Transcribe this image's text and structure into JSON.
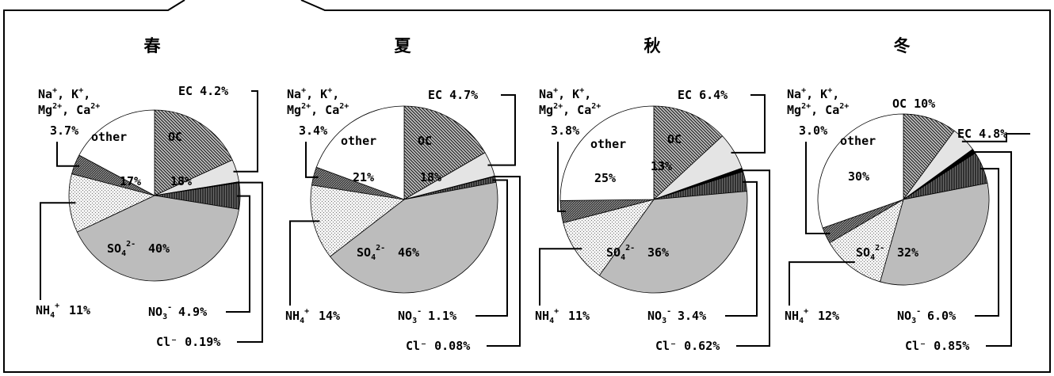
{
  "chart_data": [
    {
      "type": "pie",
      "title": "春",
      "slices": [
        {
          "name": "OC",
          "value": 18,
          "label": "18%",
          "pattern": "diag"
        },
        {
          "name": "EC",
          "value": 4.2,
          "label": "EC 4.2%",
          "pattern": "light"
        },
        {
          "name": "Cl⁻",
          "value": 0.19,
          "label": "Cl⁻ 0.19%",
          "pattern": "black"
        },
        {
          "name": "NO₃⁻",
          "value": 4.9,
          "label": "NO₃⁻ 4.9%",
          "pattern": "vert"
        },
        {
          "name": "SO₄²⁻",
          "value": 40,
          "label": "40%",
          "pattern": "gray"
        },
        {
          "name": "NH₄⁺",
          "value": 11,
          "label": "NH₄⁺ 11%",
          "pattern": "dots"
        },
        {
          "name": "Na⁺, K⁺, Mg²⁺, Ca²⁺",
          "value": 3.7,
          "label": "3.7%",
          "pattern": "dark"
        },
        {
          "name": "other",
          "value": 17,
          "label": "17%",
          "pattern": "white"
        }
      ]
    },
    {
      "type": "pie",
      "title": "夏",
      "slices": [
        {
          "name": "OC",
          "value": 18,
          "label": "18%",
          "pattern": "diag"
        },
        {
          "name": "EC",
          "value": 4.7,
          "label": "EC 4.7%",
          "pattern": "light"
        },
        {
          "name": "Cl⁻",
          "value": 0.08,
          "label": "Cl⁻ 0.08%",
          "pattern": "black"
        },
        {
          "name": "NO₃⁻",
          "value": 1.1,
          "label": "NO₃⁻ 1.1%",
          "pattern": "vert"
        },
        {
          "name": "SO₄²⁻",
          "value": 46,
          "label": "46%",
          "pattern": "gray"
        },
        {
          "name": "NH₄⁺",
          "value": 14,
          "label": "NH₄⁺ 14%",
          "pattern": "dots"
        },
        {
          "name": "Na⁺, K⁺, Mg²⁺, Ca²⁺",
          "value": 3.4,
          "label": "3.4%",
          "pattern": "dark"
        },
        {
          "name": "other",
          "value": 21,
          "label": "21%",
          "pattern": "white"
        }
      ]
    },
    {
      "type": "pie",
      "title": "秋",
      "slices": [
        {
          "name": "OC",
          "value": 13,
          "label": "13%",
          "pattern": "diag"
        },
        {
          "name": "EC",
          "value": 6.4,
          "label": "EC 6.4%",
          "pattern": "light"
        },
        {
          "name": "Cl⁻",
          "value": 0.62,
          "label": "Cl⁻ 0.62%",
          "pattern": "black"
        },
        {
          "name": "NO₃⁻",
          "value": 3.4,
          "label": "NO₃⁻ 3.4%",
          "pattern": "vert"
        },
        {
          "name": "SO₄²⁻",
          "value": 36,
          "label": "36%",
          "pattern": "gray"
        },
        {
          "name": "NH₄⁺",
          "value": 11,
          "label": "NH₄⁺ 11%",
          "pattern": "dots"
        },
        {
          "name": "Na⁺, K⁺, Mg²⁺, Ca²⁺",
          "value": 3.8,
          "label": "3.8%",
          "pattern": "dark"
        },
        {
          "name": "other",
          "value": 25,
          "label": "25%",
          "pattern": "white"
        }
      ]
    },
    {
      "type": "pie",
      "title": "冬",
      "slices": [
        {
          "name": "OC",
          "value": 10,
          "label": "OC 10%",
          "pattern": "diag"
        },
        {
          "name": "EC",
          "value": 4.8,
          "label": "EC 4.8%",
          "pattern": "light"
        },
        {
          "name": "Cl⁻",
          "value": 0.85,
          "label": "Cl⁻ 0.85%",
          "pattern": "black"
        },
        {
          "name": "NO₃⁻",
          "value": 6.0,
          "label": "NO₃⁻ 6.0%",
          "pattern": "vert"
        },
        {
          "name": "SO₄²⁻",
          "value": 32,
          "label": "32%",
          "pattern": "gray"
        },
        {
          "name": "NH₄⁺",
          "value": 12,
          "label": "NH₄⁺ 12%",
          "pattern": "dots"
        },
        {
          "name": "Na⁺, K⁺, Mg²⁺, Ca²⁺",
          "value": 3.0,
          "label": "3.0%",
          "pattern": "dark"
        },
        {
          "name": "other",
          "value": 30,
          "label": "30%",
          "pattern": "white"
        }
      ]
    }
  ]
}
